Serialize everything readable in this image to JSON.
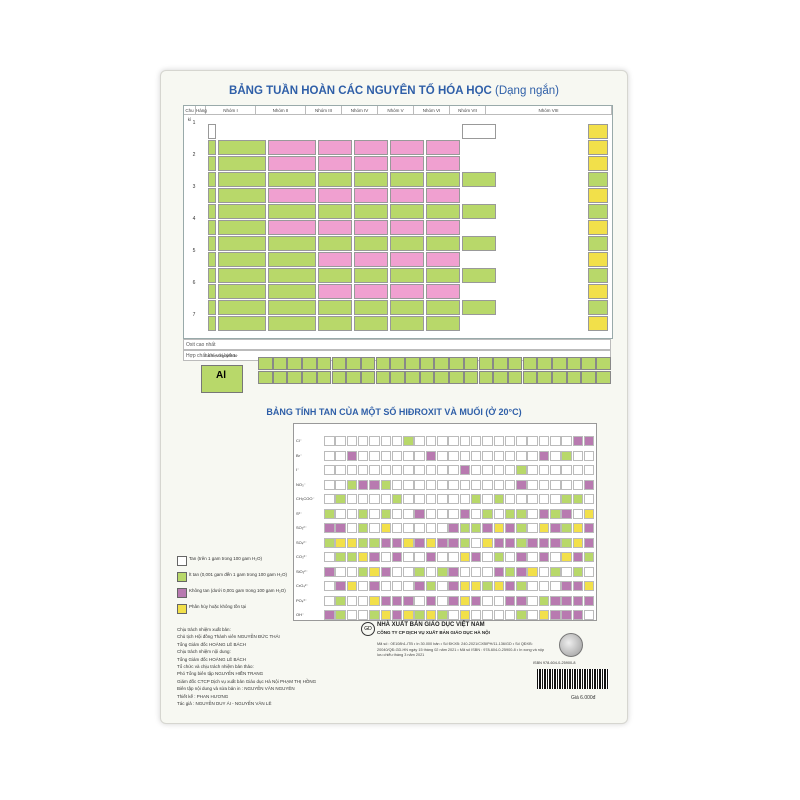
{
  "sheet": {
    "title_main": "BẢNG TUẦN HOÀN CÁC NGUYÊN TỐ HÓA HỌC",
    "title_sub": "(Dạng ngắn)",
    "periodic_headers": [
      "Chu kì",
      "Hàng",
      "Nhóm I",
      "Nhóm II",
      "Nhóm III",
      "Nhóm IV",
      "Nhóm V",
      "Nhóm VI",
      "Nhóm VII",
      "Nhóm VIII"
    ],
    "row_labels": [
      "1",
      "2",
      "3",
      "4",
      "5",
      "6",
      "7"
    ],
    "oxide_label": "Oxit cao nhất",
    "oxide_formulas": [
      "R₂O",
      "RO",
      "R₂O₃",
      "RO₂",
      "R₂O₅",
      "RO₃",
      "R₂O₇",
      "RO₄"
    ],
    "hydride_label": "Hợp chất khí với hiđro",
    "hydride_formulas": [
      "RH₄",
      "RH₃",
      "RH₂",
      "RH"
    ],
    "legend_symbol": "Al",
    "legend_caption": "Số hiệu nguyên tử",
    "solubility_title": "BẢNG TÍNH TAN CỦA MỘT SỐ HIĐROXIT VÀ MUỐI (Ở 20°C)",
    "anion_labels": [
      "Cl⁻",
      "Br⁻",
      "I⁻",
      "NO₃⁻",
      "CH₃COO⁻",
      "S²⁻",
      "SO₃²⁻",
      "SO₄²⁻",
      "CO₃²⁻",
      "SiO₃²⁻",
      "CrO₄²⁻",
      "PO₄³⁻",
      "OH⁻"
    ],
    "legend": [
      {
        "text": "Tan (trên 1 gam trong 100 gam H₂O)"
      },
      {
        "text": "Ít tan (0,001 gam đến 1 gam trong 100 gam H₂O)"
      },
      {
        "text": "Không tan (dưới 0,001 gam trong 100 gam H₂O)"
      },
      {
        "text": "Phân hủy hoặc không tồn tại"
      }
    ],
    "credits": [
      "Chịu trách nhiệm xuất bản:",
      "Chủ tịch Hội đồng Thành viên NGUYỄN ĐỨC THÁI",
      "Tổng Giám đốc HOÀNG LÊ BÁCH",
      "Chịu trách nhiệm nội dung:",
      "Tổng Giám đốc HOÀNG LÊ BÁCH",
      "Tổ chức và chịu trách nhiệm bản thảo:",
      "Phó Tổng biên tập NGUYỄN HIỀN TRANG",
      "Giám đốc CTCP Dịch vụ xuất bản Giáo dục Hà Nội PHẠM THỊ HỒNG",
      "Biên tập nội dung và sửa bản in : NGUYỄN VĂN NGUYÊN",
      "Thiết kế : PHAN HƯƠNG",
      "Tác giả : NGUYỄN DUY ÁI - NGUYỄN VĂN LÊ"
    ],
    "publisher_name": "NHÀ XUẤT BẢN GIÁO DỤC VIỆT NAM",
    "publisher_sub": "CÔNG TY CP DỊCH VỤ XUẤT BẢN GIÁO DỤC HÀ NỘI",
    "publisher_details": "Mã số : 0E108h1-ITB • In 30.000 bản • Số ĐKXB: 240-2021/CXBIPH/11-136/GD • Số QĐXB: 20040/QĐ-GD-HN ngày 15 tháng 02 năm 2021 • Mã số ISBN : 978-604-0-25900-8 • In xong và nộp lưu chiểu tháng 3 năm 2021",
    "isbn": "ISBN 978-604-0-25900-8",
    "price": "Giá 6.000đ"
  }
}
